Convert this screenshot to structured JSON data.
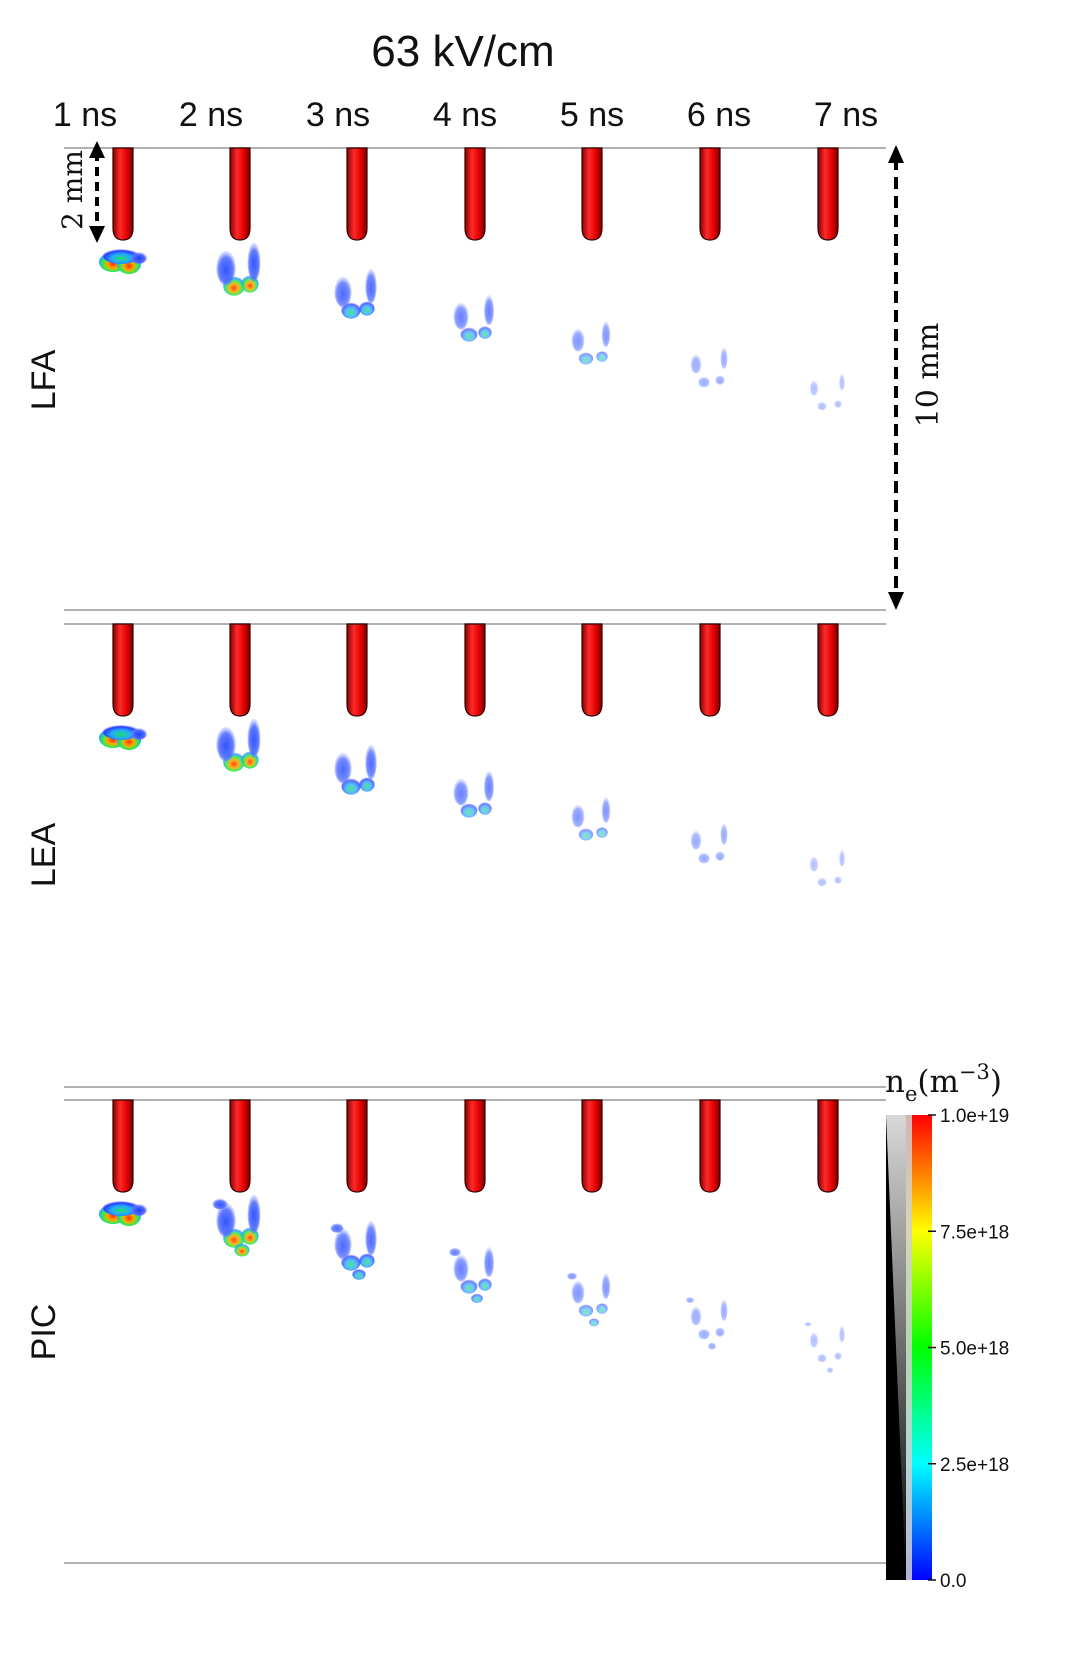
{
  "title": "63 kV/cm",
  "times": [
    "1 ns",
    "2 ns",
    "3 ns",
    "4 ns",
    "5 ns",
    "6 ns",
    "7 ns"
  ],
  "panels": [
    {
      "label": "LFA"
    },
    {
      "label": "LEA"
    },
    {
      "label": "PIC"
    }
  ],
  "scale": {
    "small": "2 mm",
    "large": "10 mm"
  },
  "colorbar": {
    "title_base": "n",
    "title_sub": "e",
    "title_unit": "(m",
    "title_exp": "−3",
    "title_close": ")",
    "ticks": [
      "1.0e+19",
      "7.5e+18",
      "5.0e+18",
      "2.5e+18",
      "0.0"
    ],
    "colors": [
      "#ff0000",
      "#ffff00",
      "#00ff00",
      "#00ffff",
      "#0000ff"
    ]
  },
  "electrode_color": "#dd0000"
}
